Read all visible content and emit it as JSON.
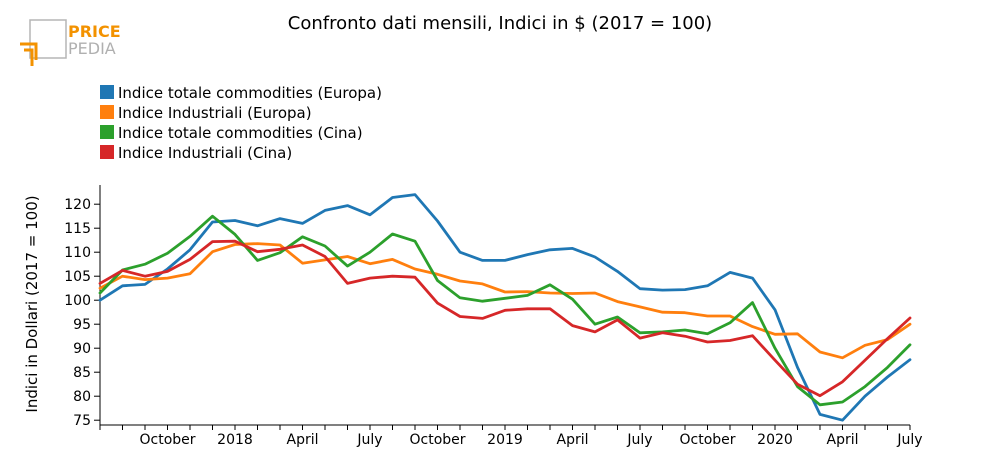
{
  "logo": {
    "line1": "PRICE",
    "line2": "PEDIA",
    "primary_color": "#f39200",
    "secondary_color": "#a8a8a8"
  },
  "chart_data": {
    "type": "line",
    "title": "Confronto dati mensili, Indici in $ (2017 = 100)",
    "xlabel": "",
    "ylabel": "Indici in Dollari (2017 = 100)",
    "ylim": [
      74,
      124
    ],
    "yticks": [
      75,
      80,
      85,
      90,
      95,
      100,
      105,
      110,
      115,
      120
    ],
    "x_start": "2017-07",
    "n_points": 37,
    "xticks": [
      {
        "index": 3,
        "label": "October"
      },
      {
        "index": 6,
        "label": "2018"
      },
      {
        "index": 9,
        "label": "April"
      },
      {
        "index": 12,
        "label": "July"
      },
      {
        "index": 15,
        "label": "October"
      },
      {
        "index": 18,
        "label": "2019"
      },
      {
        "index": 21,
        "label": "April"
      },
      {
        "index": 24,
        "label": "July"
      },
      {
        "index": 27,
        "label": "October"
      },
      {
        "index": 30,
        "label": "2020"
      },
      {
        "index": 33,
        "label": "April"
      },
      {
        "index": 36,
        "label": "July"
      }
    ],
    "legend_position": "top-left",
    "grid": false,
    "series": [
      {
        "name": "Indice totale commodities (Europa)",
        "color": "#1f77b4",
        "values": [
          100,
          103,
          103.3,
          106.5,
          110.5,
          116.3,
          116.6,
          115.5,
          117,
          116,
          118.7,
          119.7,
          117.8,
          121.4,
          122,
          116.5,
          110,
          108.3,
          108.3,
          109.5,
          110.5,
          110.8,
          109,
          106,
          102.4,
          102.1,
          102.2,
          103,
          105.8,
          104.6,
          98,
          86,
          76.2,
          75,
          80,
          84,
          87.6
        ]
      },
      {
        "name": "Indice Industriali (Europa)",
        "color": "#ff7f0e",
        "values": [
          102.5,
          105,
          104.3,
          104.6,
          105.5,
          110.1,
          111.6,
          111.8,
          111.5,
          107.7,
          108.4,
          109.1,
          107.6,
          108.5,
          106.5,
          105.4,
          104,
          103.4,
          101.7,
          101.8,
          101.5,
          101.4,
          101.5,
          99.7,
          98.6,
          97.5,
          97.4,
          96.7,
          96.7,
          94.5,
          92.9,
          93,
          89.2,
          88,
          90.6,
          91.8,
          95
        ]
      },
      {
        "name": "Indice totale commodities (Cina)",
        "color": "#2ca02c",
        "values": [
          101.5,
          106.3,
          107.5,
          109.8,
          113.3,
          117.5,
          113.7,
          108.3,
          109.9,
          113.2,
          111.3,
          107.1,
          110,
          113.8,
          112.3,
          104.1,
          100.5,
          99.8,
          100.4,
          101,
          103.2,
          100.2,
          95,
          96.5,
          93.2,
          93.4,
          93.8,
          93,
          95.3,
          99.5,
          90,
          82,
          78.2,
          78.8,
          82,
          86,
          90.7
        ]
      },
      {
        "name": "Indice Industriali (Cina)",
        "color": "#d62728",
        "values": [
          103.5,
          106.2,
          105,
          106,
          108.5,
          112.2,
          112.3,
          110.1,
          110.6,
          111.5,
          109.1,
          103.5,
          104.6,
          105,
          104.8,
          99.4,
          96.6,
          96.2,
          97.9,
          98.2,
          98.2,
          94.7,
          93.4,
          95.9,
          92.1,
          93.2,
          92.5,
          91.3,
          91.6,
          92.6,
          87.5,
          82.5,
          80.1,
          83,
          87.5,
          92,
          96.3
        ]
      }
    ]
  }
}
